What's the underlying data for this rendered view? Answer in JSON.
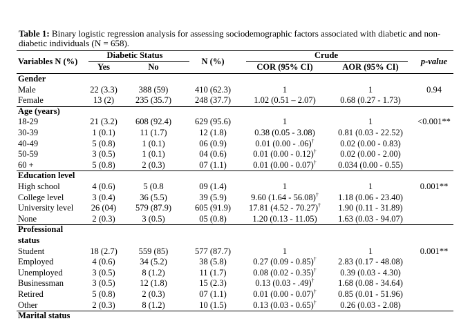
{
  "caption": {
    "label": "Table 1:",
    "text": " Binary logistic regression analysis for assessing sociodemographic factors associated with diabetic and non-diabetic individuals (N = 658)."
  },
  "headers": {
    "variables": "Variables N (%)",
    "diabetic_status": "Diabetic Status",
    "yes": "Yes",
    "no": "No",
    "n_pct": "N (%)",
    "crude": "Crude",
    "cor": "COR (95% CI)",
    "aor": "AOR (95% CI)",
    "p_value": "p-value"
  },
  "sections": [
    {
      "title": "Gender",
      "p": "0.94",
      "rows": [
        {
          "label": "Male",
          "yes": "22 (3.3)",
          "no": "388 (59)",
          "n": "410 (62.3)",
          "cor": "1",
          "cor_dag": false,
          "aor": "1"
        },
        {
          "label": "Female",
          "yes": "13 (2)",
          "no": "235 (35.7)",
          "n": "248 (37.7)",
          "cor": "1.02 (0.51 – 2.07)",
          "cor_dag": false,
          "aor": "0.68 (0.27 - 1.73)"
        }
      ]
    },
    {
      "title": "Age (years)",
      "p": "<0.001**",
      "rows": [
        {
          "label": "18-29",
          "yes": "21 (3.2)",
          "no": "608 (92.4)",
          "n": "629 (95.6)",
          "cor": "1",
          "cor_dag": false,
          "aor": "1"
        },
        {
          "label": "30-39",
          "yes": "1 (0.1)",
          "no": "11 (1.7)",
          "n": "12 (1.8)",
          "cor": "0.38 (0.05 - 3.08)",
          "cor_dag": false,
          "aor": "0.81 (0.03 - 22.52)"
        },
        {
          "label": "40-49",
          "yes": "5 (0.8)",
          "no": "1 (0.1)",
          "n": "06 (0.9)",
          "cor": "0.01 (0.00 - .06)",
          "cor_dag": true,
          "aor": "0.02 (0.00 - 0.83)"
        },
        {
          "label": "50-59",
          "yes": "3 (0.5)",
          "no": "1 (0.1)",
          "n": "04 (0.6)",
          "cor": "0.01 (0.00 - 0.12)",
          "cor_dag": true,
          "aor": "0.02 (0.00 - 2.00)"
        },
        {
          "label": "60 +",
          "yes": "5 (0.8)",
          "no": "2 (0.3)",
          "n": "07 (1.1)",
          "cor": "0.01 (0.00 - 0.07)",
          "cor_dag": true,
          "aor": "0.034 (0.00 - 0.55)"
        }
      ]
    },
    {
      "title": "Education level",
      "p": "0.001**",
      "rows": [
        {
          "label": "High school",
          "yes": "4 (0.6)",
          "no": "5 (0.8",
          "n": "09 (1.4)",
          "cor": "1",
          "cor_dag": false,
          "aor": "1"
        },
        {
          "label": "College level",
          "yes": "3 (0.4)",
          "no": "36 (5.5)",
          "n": "39 (5.9)",
          "cor": "9.60 (1.64 - 56.08)",
          "cor_dag": true,
          "aor": "1.18 (0.06 - 23.40)"
        },
        {
          "label": "University level",
          "yes": "26 (04)",
          "no": "579 (87.9)",
          "n": "605 (91.9)",
          "cor": "17.81 (4.52 - 70.27)",
          "cor_dag": true,
          "aor": "1.90 (0.11 - 31.89)"
        },
        {
          "label": "None",
          "yes": "2 (0.3)",
          "no": "3 (0.5)",
          "n": "05 (0.8)",
          "cor": "1.20 (0.13 - 11.05)",
          "cor_dag": false,
          "aor": "1.63 (0.03 - 94.07)"
        }
      ]
    },
    {
      "title": "Professional status",
      "p": "0.001**",
      "rows": [
        {
          "label": "Student",
          "yes": "18 (2.7)",
          "no": "559 (85)",
          "n": "577 (87.7)",
          "cor": "1",
          "cor_dag": false,
          "aor": "1"
        },
        {
          "label": "Employed",
          "yes": "4 (0.6)",
          "no": "34 (5.2)",
          "n": "38 (5.8)",
          "cor": "0.27 (0.09 - 0.85)",
          "cor_dag": true,
          "aor": "2.83 (0.17 - 48.08)"
        },
        {
          "label": "Unemployed",
          "yes": "3 (0.5)",
          "no": "8 (1.2)",
          "n": "11 (1.7)",
          "cor": "0.08 (0.02 - 0.35)",
          "cor_dag": true,
          "aor": "0.39 (0.03 - 4.30)"
        },
        {
          "label": "Businessman",
          "yes": "3 (0.5)",
          "no": "12 (1.8)",
          "n": "15 (2.3)",
          "cor": "0.13 (0.03 - .49)",
          "cor_dag": true,
          "aor": "1.68 (0.08 - 34.64)"
        },
        {
          "label": "Retired",
          "yes": "5 (0.8)",
          "no": "2 (0.3)",
          "n": "07 (1.1)",
          "cor": "0.01 (0.00 - 0.07)",
          "cor_dag": true,
          "aor": "0.85 (0.01 - 51.96)"
        },
        {
          "label": "Other",
          "yes": "2 (0.3)",
          "no": "8 (1.2)",
          "n": "10 (1.5)",
          "cor": "0.13 (0.03 - 0.65)",
          "cor_dag": true,
          "aor": "0.26 (0.03 - 2.08)"
        }
      ]
    },
    {
      "title": "Marital status",
      "p": "",
      "rows": []
    }
  ]
}
